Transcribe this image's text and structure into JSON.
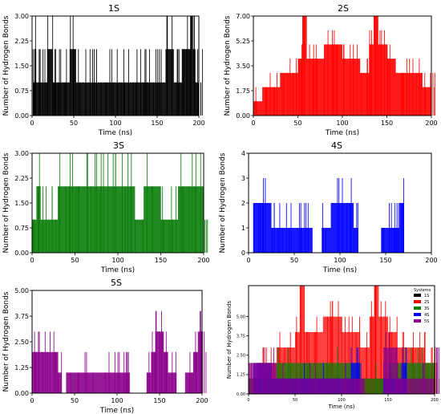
{
  "figure": {
    "panels": [
      {
        "title": "1S"
      },
      {
        "title": "2S"
      },
      {
        "title": "3S"
      },
      {
        "title": "4S"
      },
      {
        "title": "5S"
      },
      {
        "title": ""
      }
    ],
    "legend": {
      "title": "Systems"
    },
    "colors": {
      "1S": "#000000",
      "2S": "#ff0000",
      "3S": "#0b7d0b",
      "4S": "#0000ff",
      "5S": "#8b008b",
      "frame": "#000000"
    }
  },
  "chart_data": [
    {
      "type": "area",
      "title": "1S",
      "xlabel": "Time (ns)",
      "ylabel": "Number of Hydrogen Bonds",
      "xlim": [
        0,
        200
      ],
      "ylim": [
        0,
        3
      ],
      "xticks": [
        "0",
        "50",
        "100",
        "150",
        "200"
      ],
      "yticks": [
        "0.00",
        "0.75",
        "1.50",
        "2.25",
        "3.00"
      ],
      "series": [
        {
          "color": "#000000",
          "x": [
            0,
            1,
            3,
            5,
            12,
            18,
            25,
            30,
            38,
            45,
            52,
            60,
            70,
            80,
            90,
            100,
            110,
            120,
            130,
            136,
            140,
            150,
            160,
            170,
            180,
            185,
            190,
            193,
            196,
            200
          ],
          "y": [
            0,
            1,
            2,
            1,
            1,
            2,
            1,
            1,
            1,
            2,
            1,
            1,
            1,
            1,
            1,
            1,
            1,
            1,
            1,
            1,
            1,
            1,
            2,
            1,
            2,
            2,
            3,
            2,
            1,
            1
          ]
        }
      ]
    },
    {
      "type": "area",
      "title": "2S",
      "xlabel": "Time (ns)",
      "ylabel": "Number of Hydrogen Bonds",
      "xlim": [
        0,
        200
      ],
      "ylim": [
        0,
        7
      ],
      "xticks": [
        "0",
        "50",
        "100",
        "150",
        "200"
      ],
      "yticks": [
        "0.00",
        "1.75",
        "3.50",
        "5.25",
        "7.00"
      ],
      "series": [
        {
          "color": "#ff0000",
          "x": [
            0,
            10,
            20,
            30,
            40,
            50,
            55,
            60,
            70,
            80,
            90,
            100,
            110,
            120,
            130,
            135,
            140,
            150,
            160,
            170,
            180,
            190,
            200
          ],
          "y": [
            1,
            2,
            2,
            3,
            3,
            4,
            7,
            4,
            4,
            5,
            5,
            4,
            4,
            3,
            5,
            7,
            5,
            4,
            3,
            3,
            3,
            2,
            2
          ]
        }
      ]
    },
    {
      "type": "area",
      "title": "3S",
      "xlabel": "Time (ns)",
      "ylabel": "Number of Hydrogen Bonds",
      "xlim": [
        0,
        200
      ],
      "ylim": [
        0,
        3
      ],
      "xticks": [
        "0",
        "50",
        "100",
        "150",
        "200"
      ],
      "yticks": [
        "0.00",
        "0.75",
        "1.50",
        "2.25",
        "3.00"
      ],
      "series": [
        {
          "color": "#0b7d0b",
          "x": [
            0,
            5,
            10,
            20,
            30,
            40,
            50,
            60,
            70,
            80,
            90,
            100,
            110,
            120,
            130,
            140,
            150,
            160,
            170,
            180,
            190,
            200
          ],
          "y": [
            1,
            2,
            1,
            1,
            2,
            2,
            2,
            2,
            2,
            2,
            2,
            2,
            2,
            1,
            2,
            2,
            1,
            1,
            2,
            2,
            2,
            1
          ]
        }
      ]
    },
    {
      "type": "area",
      "title": "4S",
      "xlabel": "Time (ns)",
      "ylabel": "Number of Hydrogen Bonds",
      "xlim": [
        0,
        200
      ],
      "ylim": [
        0,
        4
      ],
      "xticks": [
        "0",
        "50",
        "100",
        "150",
        "200"
      ],
      "yticks": [
        "0",
        "1",
        "2",
        "3",
        "4"
      ],
      "series": [
        {
          "color": "#0000ff",
          "x": [
            0,
            5,
            15,
            25,
            30,
            40,
            50,
            60,
            70,
            80,
            90,
            100,
            110,
            115,
            120,
            135,
            145,
            155,
            160,
            165,
            170,
            180,
            195,
            200
          ],
          "y": [
            0,
            2,
            2,
            1,
            1,
            1,
            1,
            1,
            0,
            1,
            2,
            2,
            2,
            1,
            0,
            0,
            1,
            1,
            1,
            2,
            0,
            0,
            0,
            0
          ]
        }
      ]
    },
    {
      "type": "area",
      "title": "5S",
      "xlabel": "Time (ns)",
      "ylabel": "Number of Hydrogen Bonds",
      "xlim": [
        0,
        200
      ],
      "ylim": [
        0,
        5
      ],
      "xticks": [
        "0",
        "50",
        "100",
        "150",
        "200"
      ],
      "yticks": [
        "0.00",
        "1.25",
        "2.50",
        "3.75",
        "5.00"
      ],
      "series": [
        {
          "color": "#8b008b",
          "x": [
            0,
            5,
            15,
            25,
            30,
            35,
            40,
            60,
            80,
            100,
            110,
            115,
            125,
            135,
            140,
            145,
            150,
            155,
            160,
            170,
            180,
            190,
            195,
            200
          ],
          "y": [
            2,
            2,
            2,
            2,
            1,
            0,
            1,
            1,
            1,
            1,
            1,
            0,
            0,
            1,
            2,
            3,
            3,
            2,
            1,
            0,
            1,
            2,
            3,
            2
          ]
        }
      ]
    },
    {
      "type": "area",
      "title": "",
      "xlabel": "Time (ns)",
      "ylabel": "Number of Hydrogen Bonds",
      "xlim": [
        0,
        200
      ],
      "ylim": [
        0,
        7
      ],
      "xticks": [
        "0",
        "50",
        "100",
        "150",
        "200"
      ],
      "yticks": [
        "0.00",
        "1.25",
        "2.50",
        "3.75",
        "5.00"
      ],
      "legend_title": "Systems",
      "series": [
        {
          "name": "1S",
          "color": "#000000",
          "x": [
            0,
            50,
            100,
            150,
            200
          ],
          "y": [
            1,
            1,
            1,
            1,
            1
          ]
        },
        {
          "name": "2S",
          "color": "#ff0000",
          "x": [
            0,
            10,
            20,
            30,
            40,
            50,
            55,
            60,
            70,
            80,
            90,
            100,
            110,
            120,
            130,
            135,
            140,
            150,
            160,
            170,
            180,
            190,
            200
          ],
          "y": [
            1,
            2,
            2,
            3,
            3,
            4,
            7,
            4,
            4,
            5,
            5,
            4,
            4,
            3,
            5,
            7,
            5,
            4,
            3,
            3,
            3,
            2,
            2
          ]
        },
        {
          "name": "3S",
          "color": "#0b7d0b",
          "x": [
            0,
            30,
            60,
            90,
            120,
            150,
            180,
            200
          ],
          "y": [
            1,
            2,
            2,
            2,
            1,
            2,
            2,
            1
          ]
        },
        {
          "name": "4S",
          "color": "#0000ff",
          "x": [
            0,
            5,
            25,
            50,
            80,
            110,
            120,
            145,
            165,
            170,
            200
          ],
          "y": [
            0,
            2,
            1,
            1,
            1,
            2,
            0,
            1,
            2,
            0,
            0
          ]
        },
        {
          "name": "5S",
          "color": "#8b008b",
          "x": [
            0,
            30,
            40,
            80,
            110,
            125,
            145,
            160,
            180,
            200
          ],
          "y": [
            2,
            1,
            1,
            1,
            1,
            0,
            3,
            1,
            1,
            2
          ]
        }
      ]
    }
  ]
}
